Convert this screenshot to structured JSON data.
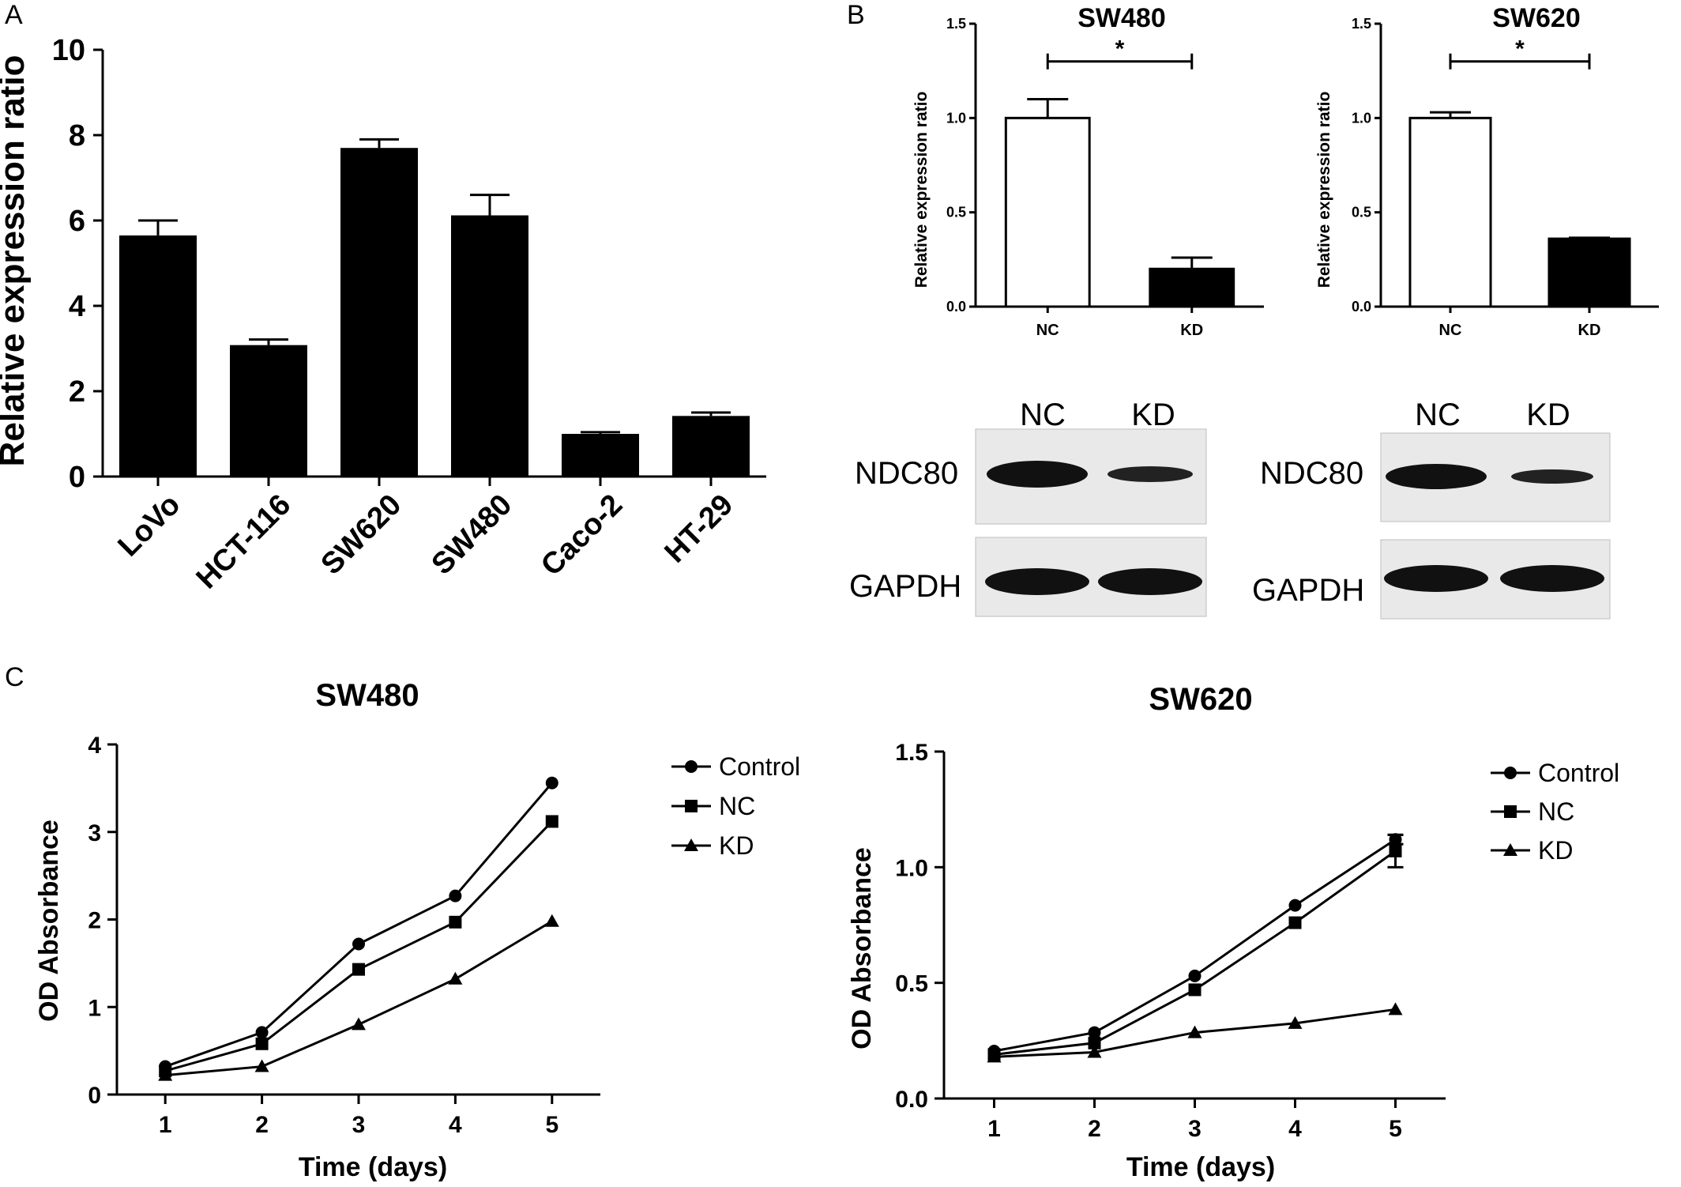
{
  "panels": {
    "A": "A",
    "B": "B",
    "C": "C"
  },
  "chart_data": [
    {
      "panel": "A",
      "type": "bar",
      "title": "",
      "xlabel": "",
      "ylabel": "Relative expression ratio",
      "ylim": [
        0,
        10
      ],
      "yticks": [
        0,
        2,
        4,
        6,
        8,
        10
      ],
      "categories": [
        "LoVo",
        "HCT-116",
        "SW620",
        "SW480",
        "Caco-2",
        "HT-29"
      ],
      "values": [
        5.65,
        3.08,
        7.7,
        6.12,
        1.0,
        1.42
      ],
      "errors": [
        0.35,
        0.13,
        0.2,
        0.48,
        0.04,
        0.08
      ],
      "bar_color": "#000000"
    },
    {
      "panel": "B",
      "type": "bar",
      "title": "SW480",
      "xlabel": "",
      "ylabel": "Relative expression ratio",
      "ylim": [
        0,
        1.5
      ],
      "yticks": [
        "0.0",
        "0.5",
        "1.0",
        "1.5"
      ],
      "categories": [
        "NC",
        "KD"
      ],
      "values": [
        1.0,
        0.2
      ],
      "errors": [
        0.1,
        0.06
      ],
      "bar_fill": [
        "#ffffff",
        "#000000"
      ],
      "significance": "*"
    },
    {
      "panel": "B",
      "type": "bar",
      "title": "SW620",
      "xlabel": "",
      "ylabel": "Relative expression ratio",
      "ylim": [
        0,
        1.5
      ],
      "yticks": [
        "0.0",
        "0.5",
        "1.0",
        "1.5"
      ],
      "categories": [
        "NC",
        "KD"
      ],
      "values": [
        1.0,
        0.36
      ],
      "errors": [
        0.03,
        0.005
      ],
      "bar_fill": [
        "#ffffff",
        "#000000"
      ],
      "significance": "*"
    },
    {
      "panel": "C",
      "type": "line",
      "title": "SW480",
      "xlabel": "Time (days)",
      "ylabel": "OD Absorbance",
      "xlim": [
        0.5,
        5.5
      ],
      "ylim": [
        0,
        4
      ],
      "x": [
        1,
        2,
        3,
        4,
        5
      ],
      "yticks": [
        "0",
        "1",
        "2",
        "3",
        "4"
      ],
      "legend_position": "right",
      "series": [
        {
          "name": "Control",
          "marker": "circle",
          "values": [
            0.32,
            0.71,
            1.72,
            2.27,
            3.56
          ]
        },
        {
          "name": "NC",
          "marker": "square",
          "values": [
            0.27,
            0.58,
            1.43,
            1.97,
            3.12
          ]
        },
        {
          "name": "KD",
          "marker": "triangle",
          "values": [
            0.22,
            0.32,
            0.8,
            1.32,
            1.98
          ]
        }
      ]
    },
    {
      "panel": "C",
      "type": "line",
      "title": "SW620",
      "xlabel": "Time (days)",
      "ylabel": "OD Absorbance",
      "xlim": [
        0.5,
        5.5
      ],
      "ylim": [
        0,
        1.5
      ],
      "x": [
        1,
        2,
        3,
        4,
        5
      ],
      "yticks": [
        "0.0",
        "0.5",
        "1.0",
        "1.5"
      ],
      "legend_position": "right",
      "series": [
        {
          "name": "Control",
          "marker": "circle",
          "values": [
            0.205,
            0.285,
            0.53,
            0.835,
            1.12
          ],
          "errors": [
            0,
            0,
            0,
            0,
            0.02
          ]
        },
        {
          "name": "NC",
          "marker": "square",
          "values": [
            0.19,
            0.24,
            0.47,
            0.76,
            1.07
          ],
          "errors": [
            0,
            0,
            0,
            0,
            0.07
          ]
        },
        {
          "name": "KD",
          "marker": "triangle",
          "values": [
            0.18,
            0.2,
            0.285,
            0.325,
            0.385
          ]
        }
      ]
    }
  ],
  "western_blots": [
    {
      "lanes": [
        "NC",
        "KD"
      ],
      "rows": [
        "NDC80",
        "GAPDH"
      ]
    },
    {
      "lanes": [
        "NC",
        "KD"
      ],
      "rows": [
        "NDC80",
        "GAPDH"
      ]
    }
  ]
}
